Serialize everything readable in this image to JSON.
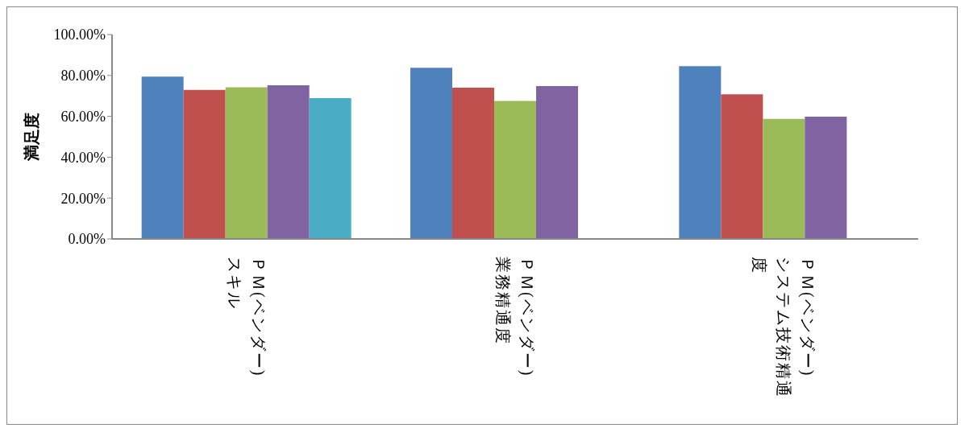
{
  "chart_data": {
    "type": "bar",
    "ylabel": "満足度",
    "categories": [
      "ＰＭ(ベンダー)スキル",
      "ＰＭ(ベンダー)業務精通度",
      "ＰＭ(ベンダー)システム技術精通度"
    ],
    "series": [
      {
        "color": "#4f81bd",
        "values": [
          79.4,
          83.8,
          84.5
        ]
      },
      {
        "color": "#c0504d",
        "values": [
          72.9,
          74.0,
          70.8
        ]
      },
      {
        "color": "#9bbb59",
        "values": [
          74.2,
          67.5,
          58.8
        ]
      },
      {
        "color": "#8064a2",
        "values": [
          75.2,
          74.8,
          59.8
        ]
      },
      {
        "color": "#4bacc6",
        "values": [
          68.9,
          null,
          null
        ]
      }
    ],
    "ylim": [
      0,
      100
    ],
    "yticks": [
      {
        "value": 0,
        "label": "0.00%"
      },
      {
        "value": 20,
        "label": "20.00%"
      },
      {
        "value": 40,
        "label": "40.00%"
      },
      {
        "value": 60,
        "label": "60.00%"
      },
      {
        "value": 80,
        "label": "80.00%"
      },
      {
        "value": 100,
        "label": "100.00%"
      }
    ],
    "grid": false,
    "legend": false
  }
}
